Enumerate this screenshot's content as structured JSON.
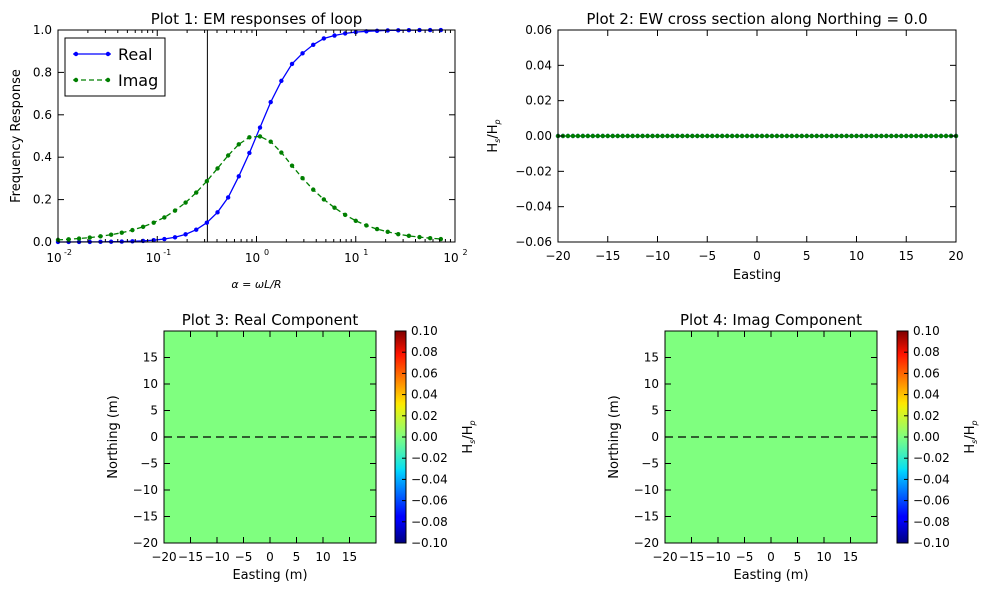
{
  "chart_data": [
    {
      "type": "line",
      "title": "Plot 1: EM responses of loop",
      "xlabel": "α = ωL/R",
      "ylabel": "Frequency Response",
      "xscale": "log",
      "xlim": [
        0.01,
        100
      ],
      "ylim": [
        0,
        1.0
      ],
      "x_ticks": [
        {
          "value": 0.01,
          "base": "10",
          "exp": "-2"
        },
        {
          "value": 0.1,
          "base": "10",
          "exp": "-1"
        },
        {
          "value": 1,
          "base": "10",
          "exp": "0"
        },
        {
          "value": 10,
          "base": "10",
          "exp": "1"
        },
        {
          "value": 100,
          "base": "10",
          "exp": "2"
        }
      ],
      "y_ticks": [
        "0.0",
        "0.2",
        "0.4",
        "0.6",
        "0.8",
        "1.0"
      ],
      "vline_x": 0.32,
      "legend_position": "top-left",
      "series": [
        {
          "name": "Real",
          "color": "#0000ff",
          "linestyle": "solid",
          "marker": "dot",
          "x": [
            0.01,
            0.0128,
            0.0163,
            0.0209,
            0.0268,
            0.0343,
            0.0439,
            0.0562,
            0.072,
            0.0921,
            0.118,
            0.151,
            0.193,
            0.247,
            0.316,
            0.405,
            0.518,
            0.663,
            0.848,
            1.085,
            1.39,
            1.78,
            2.28,
            2.91,
            3.73,
            4.77,
            6.11,
            7.82,
            10.0,
            12.8,
            16.4,
            21.0,
            26.8,
            34.3,
            43.9,
            56.2,
            72.0
          ],
          "y": [
            0.0001,
            0.0002,
            0.0003,
            0.0004,
            0.0007,
            0.0012,
            0.0019,
            0.0032,
            0.0052,
            0.0084,
            0.014,
            0.022,
            0.036,
            0.058,
            0.091,
            0.14,
            0.21,
            0.31,
            0.42,
            0.54,
            0.66,
            0.76,
            0.84,
            0.89,
            0.93,
            0.96,
            0.974,
            0.984,
            0.99,
            0.994,
            0.996,
            0.998,
            0.9986,
            0.9992,
            0.9995,
            0.9997,
            0.9998
          ]
        },
        {
          "name": "Imag",
          "color": "#007f00",
          "linestyle": "dashed",
          "marker": "dot",
          "x": [
            0.01,
            0.0128,
            0.0163,
            0.0209,
            0.0268,
            0.0343,
            0.0439,
            0.0562,
            0.072,
            0.0921,
            0.118,
            0.151,
            0.193,
            0.247,
            0.316,
            0.405,
            0.518,
            0.663,
            0.848,
            1.085,
            1.39,
            1.78,
            2.28,
            2.91,
            3.73,
            4.77,
            6.11,
            7.82,
            10.0,
            12.8,
            16.4,
            21.0,
            26.8,
            34.3,
            43.9,
            56.2,
            72.0
          ],
          "y": [
            0.01,
            0.0128,
            0.0163,
            0.0209,
            0.0268,
            0.0343,
            0.0438,
            0.056,
            0.0716,
            0.0913,
            0.116,
            0.148,
            0.186,
            0.233,
            0.287,
            0.347,
            0.408,
            0.461,
            0.494,
            0.498,
            0.473,
            0.422,
            0.36,
            0.301,
            0.247,
            0.201,
            0.162,
            0.128,
            0.1,
            0.078,
            0.061,
            0.048,
            0.037,
            0.029,
            0.023,
            0.018,
            0.014
          ]
        }
      ]
    },
    {
      "type": "line",
      "title": "Plot 2: EW cross section along Northing = 0.0",
      "xlabel": "Easting",
      "ylabel_main": "H",
      "ylabel_sub1": "s",
      "ylabel_mid": "/H",
      "ylabel_sub2": "p",
      "xlim": [
        -20,
        20
      ],
      "ylim": [
        -0.06,
        0.06
      ],
      "x_ticks": [
        "−20",
        "−15",
        "−10",
        "−5",
        "0",
        "5",
        "10",
        "15",
        "20"
      ],
      "y_ticks": [
        "−0.06",
        "−0.04",
        "−0.02",
        "0.00",
        "0.02",
        "0.04",
        "0.06"
      ],
      "series": [
        {
          "name": "",
          "color": "#0000ff",
          "marker": "dot",
          "constant_y": 0.0,
          "x_start": -20,
          "x_end": 20,
          "n_points": 81
        },
        {
          "name": "",
          "color": "#007f00",
          "marker": "dot",
          "constant_y": 0.0,
          "x_start": -20,
          "x_end": 20,
          "n_points": 81
        }
      ]
    },
    {
      "type": "heatmap",
      "title": "Plot 3: Real Component",
      "xlabel": "Easting (m)",
      "ylabel": "Northing (m)",
      "xlim": [
        -20,
        20
      ],
      "ylim": [
        -20,
        20
      ],
      "x_ticks": [
        "−20",
        "−15",
        "−10",
        "−5",
        "0",
        "5",
        "10",
        "15"
      ],
      "y_ticks": [
        "−20",
        "−15",
        "−10",
        "−5",
        "0",
        "5",
        "10",
        "15"
      ],
      "field_value": 0.0,
      "field_color": "#7fff7f",
      "dashed_line_y": 0.0,
      "colorbar": {
        "range": [
          -0.1,
          0.1
        ],
        "ticks": [
          "−0.10",
          "−0.08",
          "−0.06",
          "−0.04",
          "−0.02",
          "0.00",
          "0.02",
          "0.04",
          "0.06",
          "0.08",
          "0.10"
        ],
        "label_main": "H",
        "label_sub1": "s",
        "label_mid": "/H",
        "label_sub2": "p"
      }
    },
    {
      "type": "heatmap",
      "title": "Plot 4: Imag Component",
      "xlabel": "Easting (m)",
      "ylabel": "Northing (m)",
      "xlim": [
        -20,
        20
      ],
      "ylim": [
        -20,
        20
      ],
      "x_ticks": [
        "−20",
        "−15",
        "−10",
        "−5",
        "0",
        "5",
        "10",
        "15"
      ],
      "y_ticks": [
        "−20",
        "−15",
        "−10",
        "−5",
        "0",
        "5",
        "10",
        "15"
      ],
      "field_value": 0.0,
      "field_color": "#7fff7f",
      "dashed_line_y": 0.0,
      "colorbar": {
        "range": [
          -0.1,
          0.1
        ],
        "ticks": [
          "−0.10",
          "−0.08",
          "−0.06",
          "−0.04",
          "−0.02",
          "0.00",
          "0.02",
          "0.04",
          "0.06",
          "0.08",
          "0.10"
        ],
        "label_main": "H",
        "label_sub1": "s",
        "label_mid": "/H",
        "label_sub2": "p"
      }
    }
  ]
}
